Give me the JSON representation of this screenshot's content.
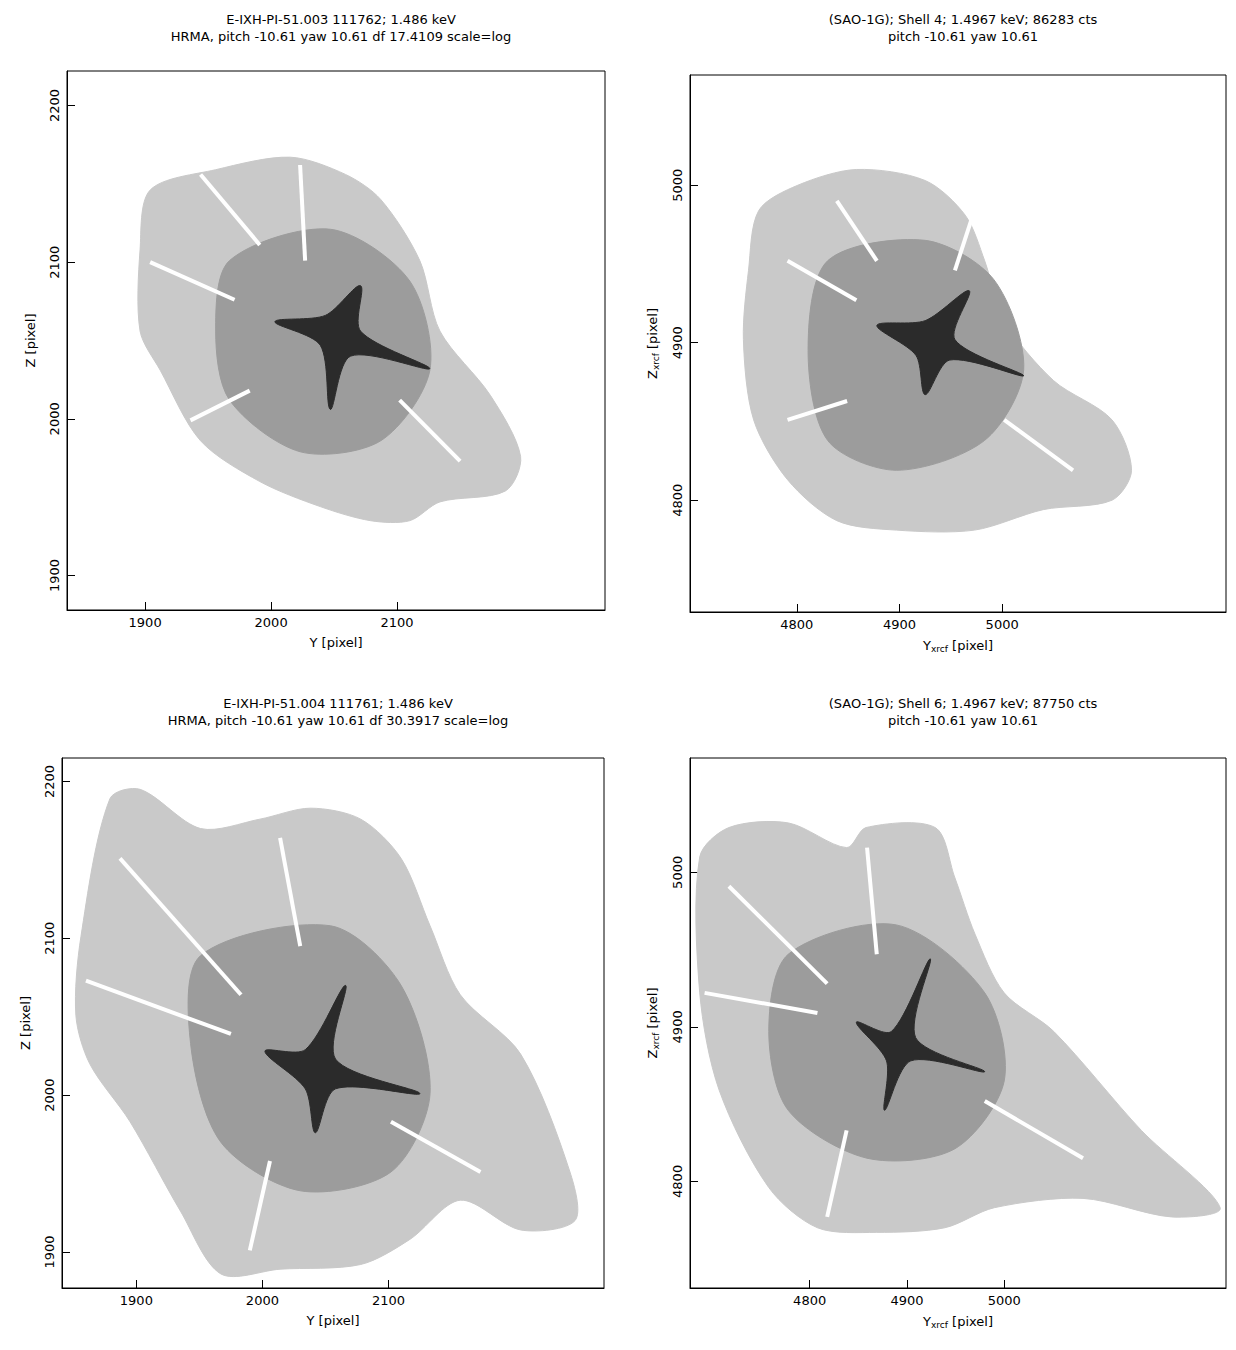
{
  "chart_data": [
    {
      "type": "image",
      "title": "E-IXH-PI-51.003 111762; 1.486 keV",
      "subtitle": "HRMA, pitch -10.61 yaw 10.61 df 17.4109 scale=log",
      "xlabel": "Y [pixel]",
      "ylabel": "Z [pixel]",
      "xlim": [
        1838,
        2265
      ],
      "ylim": [
        1878,
        2222
      ],
      "xticks": [
        1900,
        2000,
        2100
      ],
      "yticks": [
        1900,
        2000,
        2100,
        2200
      ],
      "regions": [
        {
          "color": "#c9c9c9",
          "points": [
            [
              1896,
              2108
            ],
            [
              1904,
              2146
            ],
            [
              1956,
              2159
            ],
            [
              2015,
              2167
            ],
            [
              2059,
              2156
            ],
            [
              2087,
              2140
            ],
            [
              2118,
              2101
            ],
            [
              2134,
              2056
            ],
            [
              2174,
              2015
            ],
            [
              2198,
              1976
            ],
            [
              2186,
              1954
            ],
            [
              2134,
              1947
            ],
            [
              2110,
              1935
            ],
            [
              2079,
              1935
            ],
            [
              2039,
              1944
            ],
            [
              1991,
              1960
            ],
            [
              1944,
              1986
            ],
            [
              1912,
              2031
            ],
            [
              1896,
              2056
            ]
          ]
        },
        {
          "color": "#9c9c9c",
          "points": [
            [
              1967,
              2101
            ],
            [
              2047,
              2121
            ],
            [
              2110,
              2088
            ],
            [
              2126,
              2031
            ],
            [
              2087,
              1986
            ],
            [
              2023,
              1979
            ],
            [
              1967,
              2012
            ],
            [
              1956,
              2056
            ]
          ]
        },
        {
          "color": "#2b2b2b",
          "points": [
            [
              2003,
              2062
            ],
            [
              2043,
              2066
            ],
            [
              2071,
              2085
            ],
            [
              2071,
              2056
            ],
            [
              2126,
              2032
            ],
            [
              2063,
              2040
            ],
            [
              2047,
              2006
            ],
            [
              2039,
              2047
            ]
          ]
        }
      ],
      "gaps": {
        "color": "#ffffff",
        "lines": [
          [
            [
              1991,
              2111
            ],
            [
              1944,
              2156
            ]
          ],
          [
            [
              1971,
              2076
            ],
            [
              1904,
              2100
            ]
          ],
          [
            [
              2027,
              2101
            ],
            [
              2023,
              2162
            ]
          ],
          [
            [
              2102,
              2012
            ],
            [
              2150,
              1973
            ]
          ],
          [
            [
              1983,
              2018
            ],
            [
              1936,
              1999
            ]
          ]
        ]
      }
    },
    {
      "type": "image",
      "title": "(SAO-1G); Shell 4; 1.4967 keV; 86283 cts",
      "subtitle": "pitch -10.61 yaw 10.61",
      "xlabel": "Y [pixel]",
      "xlabel_subscript": "xrcf",
      "ylabel": "Z [pixel]",
      "ylabel_subscript": "xrcf",
      "xlim": [
        4696,
        5218
      ],
      "ylim": [
        4729,
        5070
      ],
      "xticks": [
        4800,
        4900,
        5000
      ],
      "yticks": [
        4800,
        4900,
        5000
      ],
      "regions": [
        {
          "color": "#c9c9c9",
          "points": [
            [
              4753,
              4946
            ],
            [
              4763,
              4984
            ],
            [
              4801,
              5000
            ],
            [
              4858,
              5010
            ],
            [
              4925,
              5003
            ],
            [
              4964,
              4981
            ],
            [
              4983,
              4952
            ],
            [
              5002,
              4914
            ],
            [
              5050,
              4876
            ],
            [
              5107,
              4851
            ],
            [
              5126,
              4819
            ],
            [
              5107,
              4800
            ],
            [
              5040,
              4794
            ],
            [
              4973,
              4781
            ],
            [
              4897,
              4781
            ],
            [
              4839,
              4787
            ],
            [
              4791,
              4813
            ],
            [
              4758,
              4851
            ],
            [
              4748,
              4902
            ]
          ]
        },
        {
          "color": "#9c9c9c",
          "points": [
            [
              4830,
              4952
            ],
            [
              4925,
              4965
            ],
            [
              4992,
              4940
            ],
            [
              5021,
              4883
            ],
            [
              4983,
              4838
            ],
            [
              4897,
              4819
            ],
            [
              4830,
              4838
            ],
            [
              4811,
              4895
            ]
          ]
        },
        {
          "color": "#2b2b2b",
          "points": [
            [
              4878,
              4911
            ],
            [
              4925,
              4914
            ],
            [
              4968,
              4933
            ],
            [
              4954,
              4902
            ],
            [
              5021,
              4879
            ],
            [
              4949,
              4889
            ],
            [
              4925,
              4867
            ],
            [
              4916,
              4892
            ]
          ]
        }
      ],
      "gaps": {
        "color": "#ffffff",
        "lines": [
          [
            [
              4858,
              4927
            ],
            [
              4791,
              4952
            ]
          ],
          [
            [
              4878,
              4952
            ],
            [
              4839,
              4990
            ]
          ],
          [
            [
              4954,
              4946
            ],
            [
              4973,
              4984
            ]
          ],
          [
            [
              5002,
              4851
            ],
            [
              5069,
              4819
            ]
          ],
          [
            [
              4849,
              4863
            ],
            [
              4791,
              4851
            ]
          ]
        ]
      }
    },
    {
      "type": "image",
      "title": "E-IXH-PI-51.004 111761; 1.486 keV",
      "subtitle": "HRMA, pitch -10.61 yaw 10.61 df 30.3917 scale=log",
      "xlabel": "Y [pixel]",
      "ylabel": "Z [pixel]",
      "xlim": [
        1841,
        2271
      ],
      "ylim": [
        1877,
        2215
      ],
      "xticks": [
        1900,
        2000,
        2100
      ],
      "yticks": [
        1900,
        2000,
        2100,
        2200
      ],
      "regions": [
        {
          "color": "#c9c9c9",
          "points": [
            [
              1852,
              2051
            ],
            [
              1856,
              2101
            ],
            [
              1879,
              2189
            ],
            [
              1903,
              2195
            ],
            [
              1951,
              2170
            ],
            [
              1998,
              2176
            ],
            [
              2038,
              2183
            ],
            [
              2078,
              2176
            ],
            [
              2110,
              2151
            ],
            [
              2133,
              2108
            ],
            [
              2157,
              2064
            ],
            [
              2205,
              2026
            ],
            [
              2244,
              1951
            ],
            [
              2248,
              1920
            ],
            [
              2205,
              1914
            ],
            [
              2157,
              1933
            ],
            [
              2117,
              1908
            ],
            [
              2078,
              1892
            ],
            [
              2014,
              1889
            ],
            [
              1967,
              1886
            ],
            [
              1935,
              1926
            ],
            [
              1895,
              1983
            ],
            [
              1863,
              2020
            ]
          ]
        },
        {
          "color": "#9c9c9c",
          "points": [
            [
              1951,
              2089
            ],
            [
              2054,
              2108
            ],
            [
              2110,
              2070
            ],
            [
              2133,
              2001
            ],
            [
              2102,
              1951
            ],
            [
              2030,
              1939
            ],
            [
              1967,
              1970
            ],
            [
              1943,
              2033
            ]
          ]
        },
        {
          "color": "#2b2b2b",
          "points": [
            [
              2002,
              2028
            ],
            [
              2034,
              2029
            ],
            [
              2066,
              2070
            ],
            [
              2058,
              2023
            ],
            [
              2125,
              2001
            ],
            [
              2058,
              2004
            ],
            [
              2042,
              1976
            ],
            [
              2034,
              2004
            ]
          ]
        }
      ],
      "gaps": {
        "color": "#ffffff",
        "lines": [
          [
            [
              1983,
              2064
            ],
            [
              1887,
              2151
            ]
          ],
          [
            [
              1975,
              2039
            ],
            [
              1860,
              2073
            ]
          ],
          [
            [
              2030,
              2095
            ],
            [
              2014,
              2164
            ]
          ],
          [
            [
              2102,
              1983
            ],
            [
              2173,
              1951
            ]
          ],
          [
            [
              2006,
              1958
            ],
            [
              1990,
              1901
            ]
          ]
        ]
      }
    },
    {
      "type": "image",
      "title": "(SAO-1G); Shell 6; 1.4967 keV; 87750 cts",
      "subtitle": "pitch -10.61 yaw 10.61",
      "xlabel": "Y [pixel]",
      "xlabel_subscript": "xrcf",
      "ylabel": "Z [pixel]",
      "ylabel_subscript": "xrcf",
      "xlim": [
        4677,
        5228
      ],
      "ylim": [
        4731,
        5074
      ],
      "xticks": [
        4800,
        4900,
        5000
      ],
      "yticks": [
        4800,
        4900,
        5000
      ],
      "regions": [
        {
          "color": "#c9c9c9",
          "points": [
            [
              4687,
              5010
            ],
            [
              4717,
              5029
            ],
            [
              4778,
              5032
            ],
            [
              4838,
              5016
            ],
            [
              4858,
              5029
            ],
            [
              4929,
              5029
            ],
            [
              4949,
              4997
            ],
            [
              4970,
              4960
            ],
            [
              5000,
              4922
            ],
            [
              5051,
              4897
            ],
            [
              5141,
              4833
            ],
            [
              5222,
              4783
            ],
            [
              5172,
              4777
            ],
            [
              5081,
              4789
            ],
            [
              4990,
              4783
            ],
            [
              4939,
              4770
            ],
            [
              4869,
              4767
            ],
            [
              4808,
              4770
            ],
            [
              4758,
              4796
            ],
            [
              4707,
              4859
            ],
            [
              4687,
              4922
            ]
          ]
        },
        {
          "color": "#9c9c9c",
          "points": [
            [
              4778,
              4947
            ],
            [
              4889,
              4966
            ],
            [
              4980,
              4922
            ],
            [
              5000,
              4865
            ],
            [
              4949,
              4821
            ],
            [
              4859,
              4815
            ],
            [
              4778,
              4846
            ],
            [
              4758,
              4897
            ]
          ]
        },
        {
          "color": "#2b2b2b",
          "points": [
            [
              4848,
              4903
            ],
            [
              4884,
              4897
            ],
            [
              4924,
              4944
            ],
            [
              4909,
              4893
            ],
            [
              4980,
              4871
            ],
            [
              4904,
              4878
            ],
            [
              4877,
              4846
            ],
            [
              4879,
              4878
            ]
          ]
        }
      ],
      "gaps": {
        "color": "#ffffff",
        "lines": [
          [
            [
              4818,
              4928
            ],
            [
              4717,
              4991
            ]
          ],
          [
            [
              4808,
              4909
            ],
            [
              4692,
              4922
            ]
          ],
          [
            [
              4869,
              4947
            ],
            [
              4859,
              5016
            ]
          ],
          [
            [
              4980,
              4852
            ],
            [
              5081,
              4815
            ]
          ],
          [
            [
              4838,
              4833
            ],
            [
              4818,
              4777
            ]
          ]
        ]
      }
    }
  ]
}
